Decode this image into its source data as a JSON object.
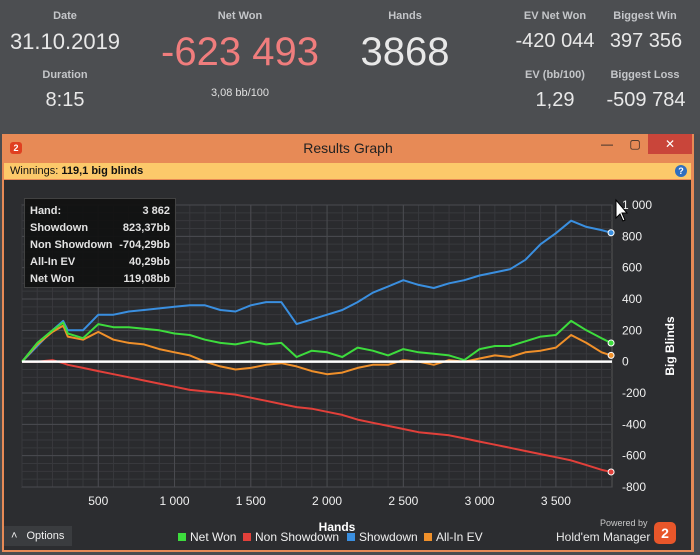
{
  "stats": {
    "date_label": "Date",
    "date_value": "31.10.2019",
    "duration_label": "Duration",
    "duration_value": "8:15",
    "net_won_label": "Net Won",
    "net_won_value": "-623 493",
    "net_won_sub": "3,08 bb/100",
    "hands_label": "Hands",
    "hands_value": "3868",
    "ev_net_won_label": "EV Net Won",
    "ev_net_won_value": "-420 044",
    "biggest_win_label": "Biggest Win",
    "biggest_win_value": "397 356",
    "ev_bb_label": "EV (bb/100)",
    "ev_bb_value": "1,29",
    "biggest_loss_label": "Biggest Loss",
    "biggest_loss_value": "-509 784"
  },
  "window": {
    "icon_text": "2",
    "title": "Results Graph",
    "minimize": "—",
    "maximize": "▢",
    "close": "✕",
    "winnings_label": "Winnings:",
    "winnings_value": "119,1 big blinds",
    "help_icon_text": "?"
  },
  "tooltip": {
    "rows": [
      {
        "key": "Hand:",
        "value": "3 862"
      },
      {
        "key": "Showdown",
        "value": "823,37bb"
      },
      {
        "key": "Non Showdown",
        "value": "-704,29bb"
      },
      {
        "key": "All-In EV",
        "value": "40,29bb"
      },
      {
        "key": "Net Won",
        "value": "119,08bb"
      }
    ]
  },
  "footer": {
    "options_arrow": "˄",
    "options_label": "Options",
    "powered_by": "Powered by",
    "brand": "Hold'em Manager",
    "brand_logo_text": "2"
  },
  "colors": {
    "net_won": "#3ddc3d",
    "non_showdown": "#e2403a",
    "showdown": "#3a8fe0",
    "all_in_ev": "#f0902a",
    "net_won_big": "#f07d7d"
  },
  "chart_data": {
    "type": "line",
    "xlabel": "Hands",
    "ylabel": "Big Blinds",
    "xlim": [
      0,
      3868
    ],
    "ylim": [
      -800,
      1000
    ],
    "x_ticks": [
      500,
      1000,
      1500,
      2000,
      2500,
      3000,
      3500
    ],
    "x_tick_labels": [
      "500",
      "1 000",
      "1 500",
      "2 000",
      "2 500",
      "3 000",
      "3 500"
    ],
    "y_ticks": [
      1000,
      800,
      600,
      400,
      200,
      0,
      -200,
      -400,
      -600,
      -800
    ],
    "y_tick_labels": [
      "1 000",
      "800",
      "600",
      "400",
      "200",
      "0",
      "-200",
      "-400",
      "-600",
      "-800"
    ],
    "grid": true,
    "legend_position": "bottom",
    "series": [
      {
        "name": "Net Won",
        "x": [
          0,
          100,
          200,
          270,
          300,
          400,
          500,
          600,
          700,
          800,
          900,
          1000,
          1100,
          1200,
          1300,
          1400,
          1500,
          1600,
          1700,
          1800,
          1900,
          2000,
          2100,
          2200,
          2300,
          2400,
          2500,
          2600,
          2700,
          2800,
          2900,
          3000,
          3100,
          3200,
          3300,
          3400,
          3500,
          3600,
          3700,
          3800,
          3862
        ],
        "y": [
          0,
          120,
          200,
          250,
          180,
          150,
          240,
          220,
          220,
          210,
          200,
          180,
          170,
          140,
          120,
          110,
          130,
          110,
          120,
          30,
          70,
          60,
          30,
          90,
          70,
          40,
          80,
          60,
          50,
          40,
          10,
          80,
          100,
          100,
          130,
          160,
          170,
          260,
          200,
          150,
          119
        ]
      },
      {
        "name": "Non Showdown",
        "x": [
          0,
          100,
          200,
          270,
          300,
          400,
          500,
          600,
          700,
          800,
          900,
          1000,
          1100,
          1200,
          1300,
          1400,
          1500,
          1600,
          1700,
          1800,
          1900,
          2000,
          2100,
          2200,
          2300,
          2400,
          2500,
          2600,
          2700,
          2800,
          2900,
          3000,
          3100,
          3200,
          3300,
          3400,
          3500,
          3600,
          3700,
          3800,
          3862
        ],
        "y": [
          0,
          0,
          10,
          -10,
          -20,
          -40,
          -60,
          -80,
          -100,
          -120,
          -140,
          -160,
          -180,
          -190,
          -200,
          -210,
          -230,
          -250,
          -270,
          -290,
          -300,
          -320,
          -340,
          -370,
          -390,
          -410,
          -430,
          -450,
          -460,
          -470,
          -490,
          -510,
          -530,
          -550,
          -570,
          -590,
          -610,
          -630,
          -660,
          -690,
          -704
        ]
      },
      {
        "name": "Showdown",
        "x": [
          0,
          100,
          200,
          270,
          300,
          400,
          500,
          600,
          700,
          800,
          900,
          1000,
          1100,
          1200,
          1300,
          1400,
          1500,
          1600,
          1700,
          1800,
          1900,
          2000,
          2100,
          2200,
          2300,
          2400,
          2500,
          2600,
          2700,
          2800,
          2900,
          3000,
          3100,
          3200,
          3300,
          3400,
          3500,
          3600,
          3700,
          3800,
          3862
        ],
        "y": [
          0,
          100,
          200,
          260,
          200,
          200,
          300,
          300,
          320,
          330,
          340,
          350,
          360,
          360,
          330,
          320,
          360,
          380,
          380,
          240,
          270,
          300,
          330,
          380,
          440,
          480,
          520,
          490,
          470,
          500,
          520,
          550,
          570,
          590,
          650,
          750,
          820,
          900,
          860,
          840,
          823
        ]
      },
      {
        "name": "All-In EV",
        "x": [
          0,
          100,
          200,
          270,
          300,
          400,
          500,
          600,
          700,
          800,
          900,
          1000,
          1100,
          1200,
          1300,
          1400,
          1500,
          1600,
          1700,
          1800,
          1900,
          2000,
          2100,
          2200,
          2300,
          2400,
          2500,
          2600,
          2700,
          2800,
          2900,
          3000,
          3100,
          3200,
          3300,
          3400,
          3500,
          3600,
          3700,
          3800,
          3862
        ],
        "y": [
          0,
          110,
          190,
          230,
          160,
          140,
          190,
          140,
          120,
          110,
          80,
          60,
          40,
          0,
          -30,
          -50,
          -40,
          -20,
          -10,
          -30,
          -60,
          -80,
          -70,
          -40,
          -20,
          -20,
          10,
          0,
          -20,
          10,
          0,
          20,
          40,
          30,
          60,
          70,
          90,
          170,
          120,
          60,
          40
        ]
      }
    ]
  }
}
